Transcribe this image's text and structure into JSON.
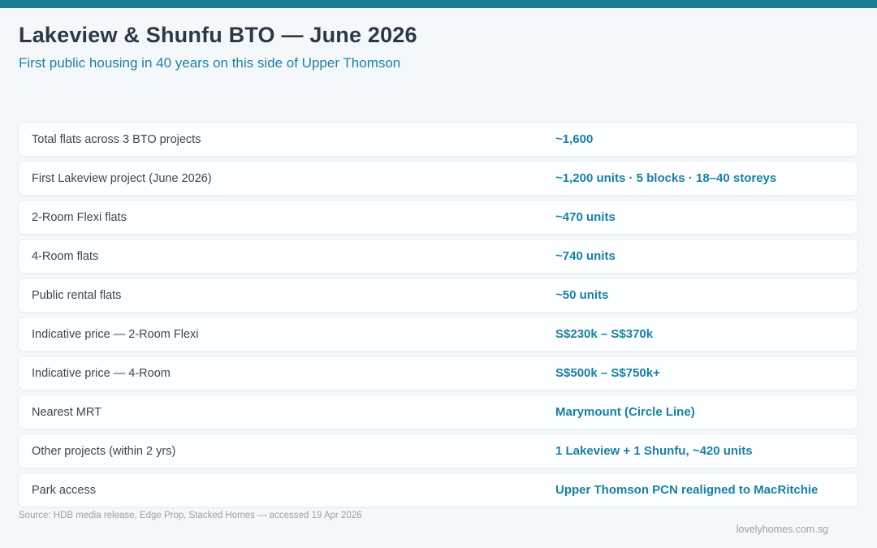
{
  "page": {
    "title": "Lakeview & Shunfu BTO — June 2026",
    "subtitle": "First public housing in 40 years on this side of Upper Thomson",
    "source_note": "Source: HDB media release, Edge Prop, Stacked Homes — accessed 19 Apr 2026",
    "site_credit": "lovelyhomes.com.sg"
  },
  "colors": {
    "accent_bar": "#1e7e91",
    "title_text": "#2b3946",
    "teal_text": "#1a80a0",
    "label_text": "#3c4650",
    "muted_text": "#99a1aa",
    "page_bg": "#f5f8fa",
    "card_bg": "#fdfeff",
    "card_border": "#e9eef1"
  },
  "table": {
    "rows": [
      {
        "label": "Total flats across 3 BTO projects",
        "value": "~1,600"
      },
      {
        "label": "First Lakeview project (June 2026)",
        "value": "~1,200 units · 5 blocks · 18–40 storeys"
      },
      {
        "label": "2-Room Flexi flats",
        "value": "~470 units"
      },
      {
        "label": "4-Room flats",
        "value": "~740 units"
      },
      {
        "label": "Public rental flats",
        "value": "~50 units"
      },
      {
        "label": "Indicative price — 2-Room Flexi",
        "value": "S$230k – S$370k"
      },
      {
        "label": "Indicative price — 4-Room",
        "value": "S$500k – S$750k+"
      },
      {
        "label": "Nearest MRT",
        "value": "Marymount (Circle Line)"
      },
      {
        "label": "Other projects (within 2 yrs)",
        "value": "1 Lakeview + 1 Shunfu, ~420 units"
      },
      {
        "label": "Park access",
        "value": "Upper Thomson PCN realigned to MacRitchie"
      }
    ]
  }
}
